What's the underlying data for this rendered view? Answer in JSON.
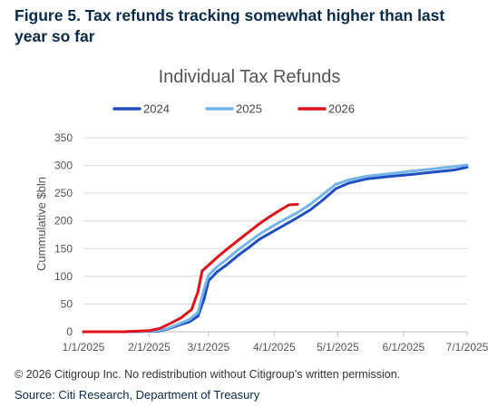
{
  "figure_title": "Figure 5. Tax refunds tracking somewhat higher than last year so far",
  "copyright": "© 2026 Citigroup Inc. No redistribution without Citigroup’s written permission.",
  "source": "Source: Citi Research, Department of Treasury",
  "chart_data": {
    "type": "line",
    "title": "Individual Tax Refunds",
    "xlabel": "",
    "ylabel": "Cummulative $bln",
    "ylim": [
      0,
      350
    ],
    "yticks": [
      0,
      50,
      100,
      150,
      200,
      250,
      300,
      350
    ],
    "xlim": [
      "1/1/2025",
      "7/1/2025"
    ],
    "xtick_labels": [
      "1/1/2025",
      "2/1/2025",
      "3/1/2025",
      "4/1/2025",
      "5/1/2025",
      "6/1/2025",
      "7/1/2025"
    ],
    "grid": "horizontal",
    "legend_position": "top-center",
    "series": [
      {
        "name": "2024",
        "color": "#1f4fbf",
        "points": [
          [
            "1/1/2025",
            0
          ],
          [
            "1/20/2025",
            0
          ],
          [
            "2/5/2025",
            1
          ],
          [
            "2/10/2025",
            5
          ],
          [
            "2/15/2025",
            12
          ],
          [
            "2/20/2025",
            18
          ],
          [
            "2/24/2025",
            28
          ],
          [
            "2/27/2025",
            60
          ],
          [
            "3/1/2025",
            92
          ],
          [
            "3/5/2025",
            108
          ],
          [
            "3/10/2025",
            122
          ],
          [
            "3/15/2025",
            138
          ],
          [
            "3/20/2025",
            152
          ],
          [
            "3/25/2025",
            167
          ],
          [
            "3/31/2025",
            180
          ],
          [
            "4/6/2025",
            193
          ],
          [
            "4/12/2025",
            206
          ],
          [
            "4/18/2025",
            220
          ],
          [
            "4/24/2025",
            238
          ],
          [
            "4/30/2025",
            258
          ],
          [
            "5/6/2025",
            268
          ],
          [
            "5/15/2025",
            276
          ],
          [
            "5/25/2025",
            280
          ],
          [
            "6/5/2025",
            284
          ],
          [
            "6/15/2025",
            288
          ],
          [
            "6/25/2025",
            292
          ],
          [
            "7/1/2025",
            297
          ]
        ]
      },
      {
        "name": "2025",
        "color": "#74b4e8",
        "points": [
          [
            "1/1/2025",
            0
          ],
          [
            "1/27/2025",
            0
          ],
          [
            "2/5/2025",
            2
          ],
          [
            "2/10/2025",
            6
          ],
          [
            "2/15/2025",
            14
          ],
          [
            "2/20/2025",
            22
          ],
          [
            "2/24/2025",
            35
          ],
          [
            "2/27/2025",
            78
          ],
          [
            "3/1/2025",
            102
          ],
          [
            "3/5/2025",
            117
          ],
          [
            "3/10/2025",
            132
          ],
          [
            "3/15/2025",
            148
          ],
          [
            "3/20/2025",
            162
          ],
          [
            "3/25/2025",
            176
          ],
          [
            "3/31/2025",
            190
          ],
          [
            "4/6/2025",
            203
          ],
          [
            "4/12/2025",
            215
          ],
          [
            "4/18/2025",
            230
          ],
          [
            "4/24/2025",
            248
          ],
          [
            "4/30/2025",
            266
          ],
          [
            "5/6/2025",
            274
          ],
          [
            "5/15/2025",
            281
          ],
          [
            "5/25/2025",
            285
          ],
          [
            "6/5/2025",
            290
          ],
          [
            "6/15/2025",
            294
          ],
          [
            "6/25/2025",
            298
          ],
          [
            "7/1/2025",
            301
          ]
        ]
      },
      {
        "name": "2026",
        "color": "#e0101c",
        "points": [
          [
            "1/1/2025",
            0
          ],
          [
            "1/20/2025",
            0
          ],
          [
            "2/1/2025",
            2
          ],
          [
            "2/6/2025",
            6
          ],
          [
            "2/11/2025",
            15
          ],
          [
            "2/16/2025",
            25
          ],
          [
            "2/21/2025",
            40
          ],
          [
            "2/24/2025",
            72
          ],
          [
            "2/26/2025",
            110
          ],
          [
            "3/1/2025",
            120
          ],
          [
            "3/5/2025",
            134
          ],
          [
            "3/10/2025",
            150
          ],
          [
            "3/15/2025",
            165
          ],
          [
            "3/20/2025",
            180
          ],
          [
            "3/25/2025",
            195
          ],
          [
            "3/30/2025",
            208
          ],
          [
            "4/4/2025",
            220
          ],
          [
            "4/8/2025",
            229
          ],
          [
            "4/12/2025",
            230
          ]
        ]
      }
    ]
  }
}
